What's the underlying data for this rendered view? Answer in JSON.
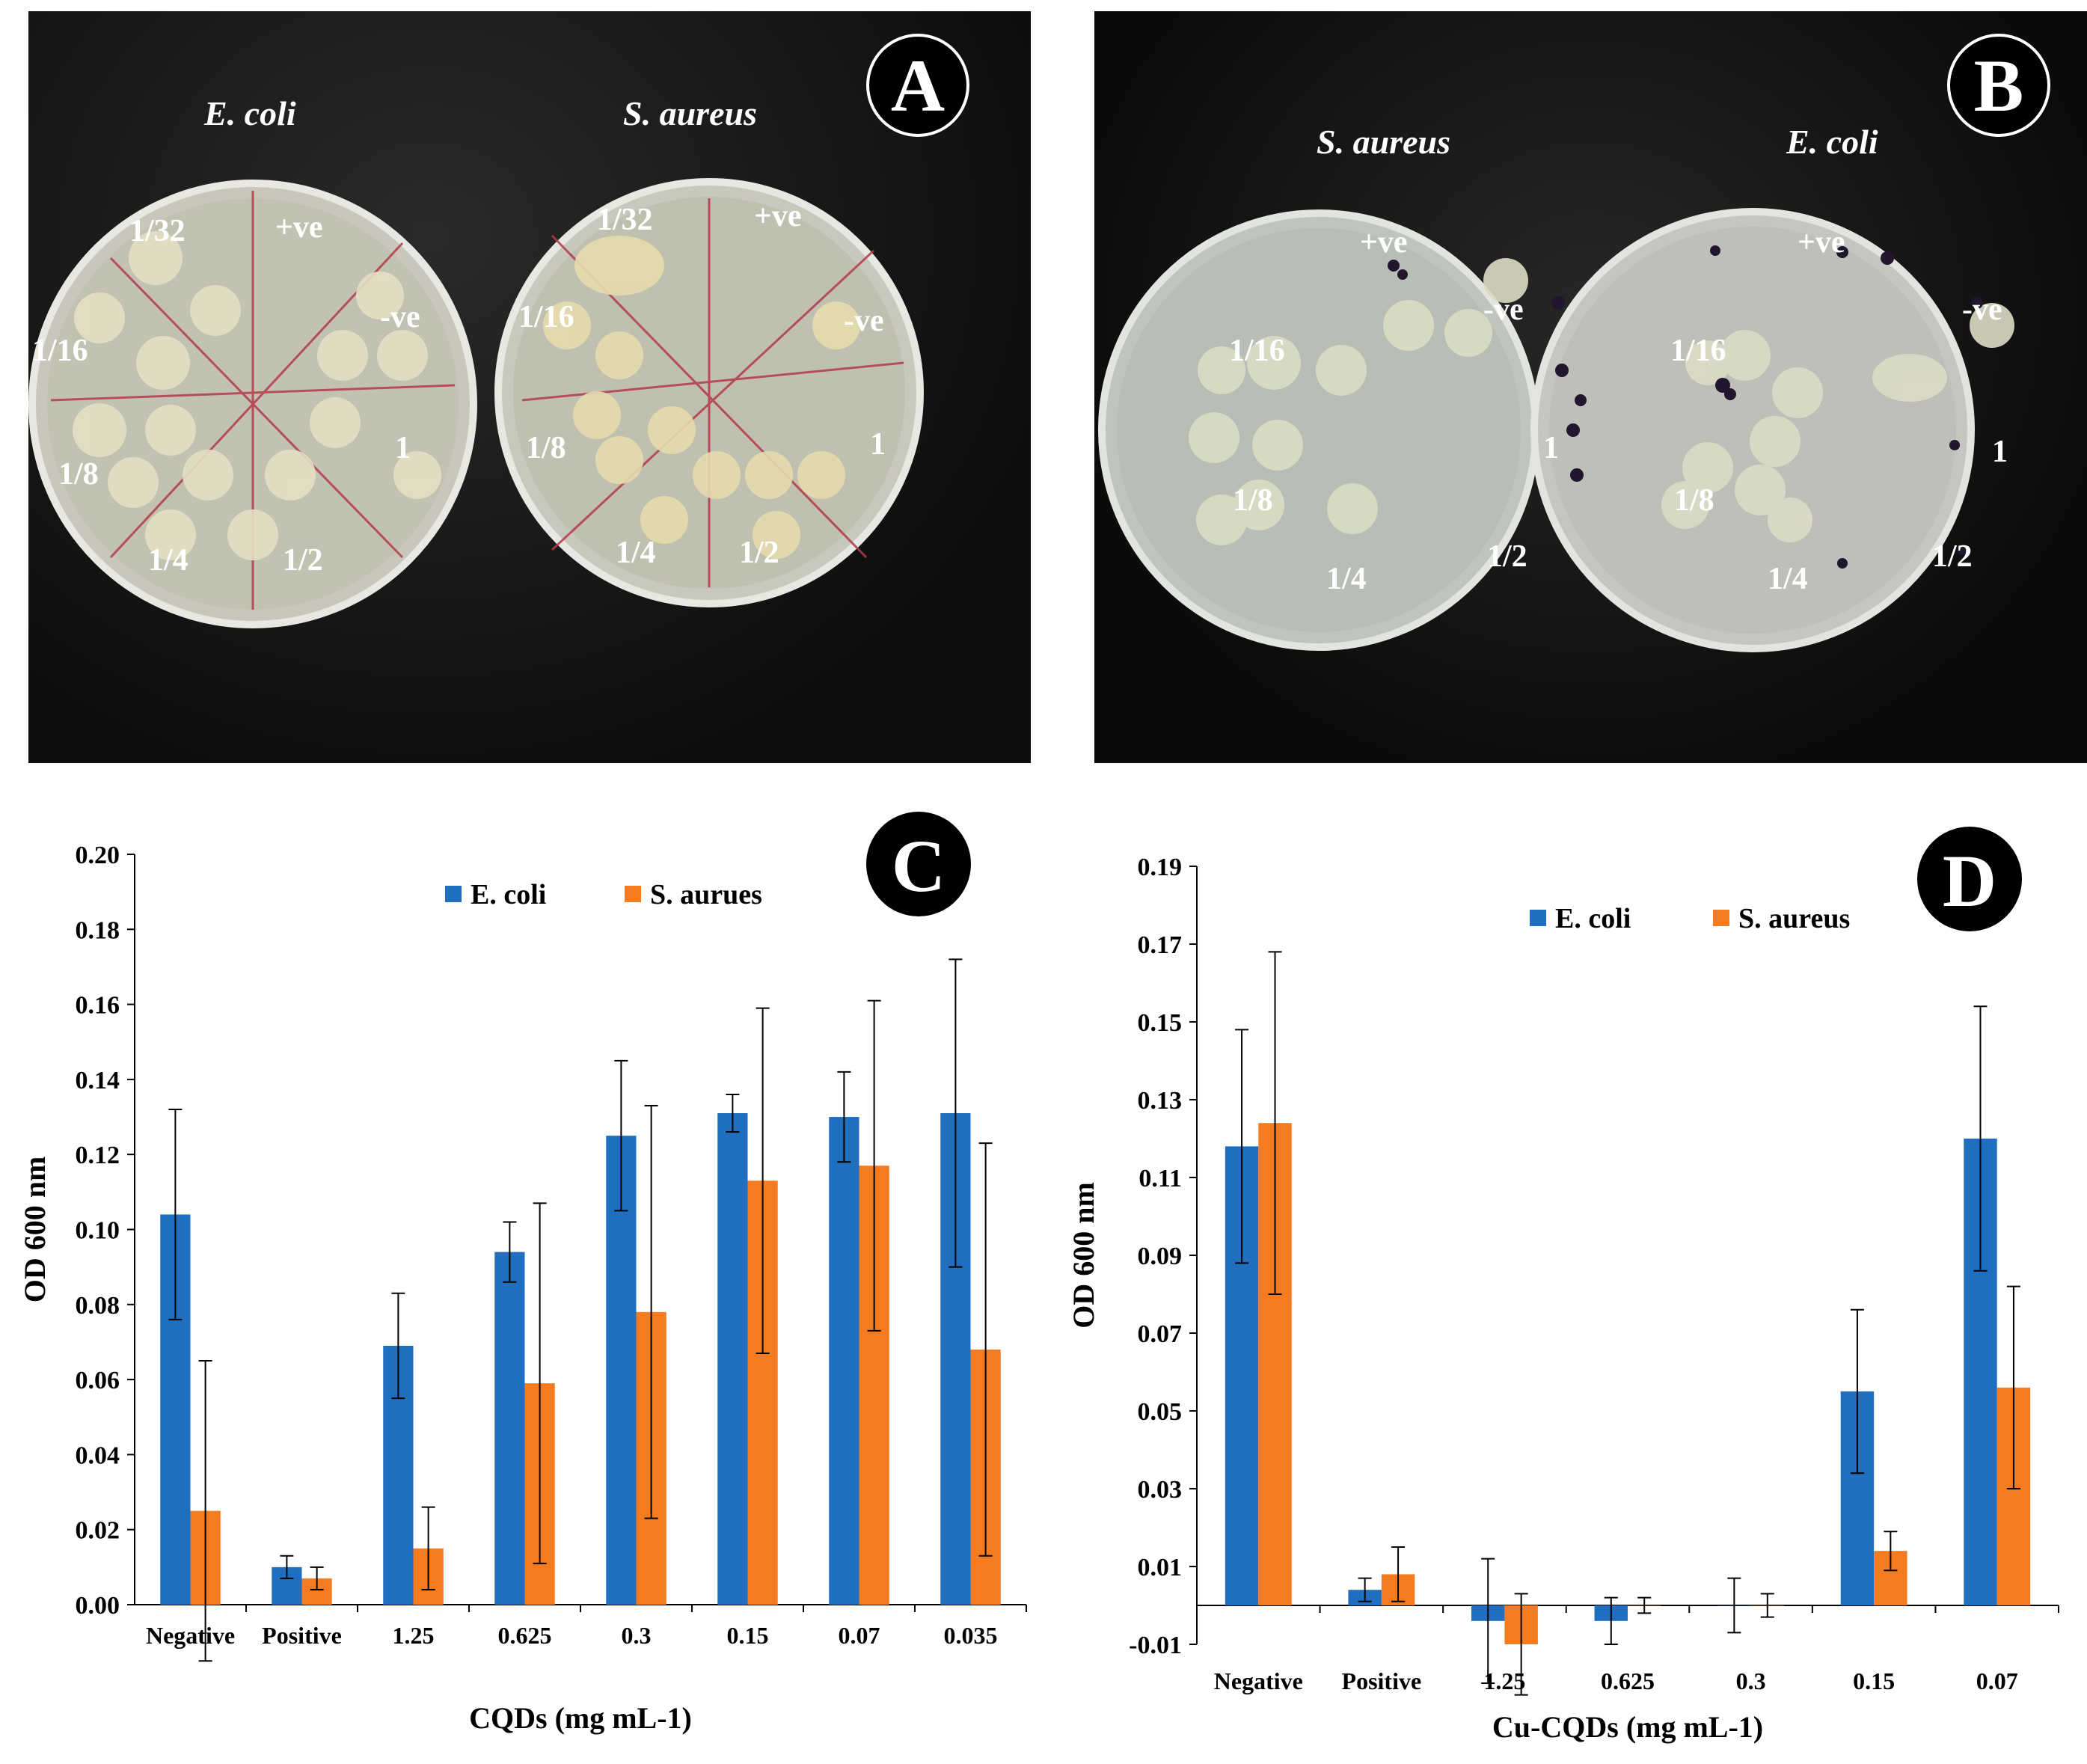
{
  "panels": {
    "A": {
      "badge": "A",
      "plates": [
        {
          "title": "E. coli",
          "labels": {
            "pos": "+ve",
            "neg": "-ve",
            "d1": "1",
            "d2": "1/2",
            "d4": "1/4",
            "d8": "1/8",
            "d16": "1/16",
            "d32": "1/32"
          }
        },
        {
          "title": "S. aureus",
          "labels": {
            "pos": "+ve",
            "neg": "-ve",
            "d1": "1",
            "d2": "1/2",
            "d4": "1/4",
            "d8": "1/8",
            "d16": "1/16",
            "d32": "1/32"
          }
        }
      ]
    },
    "B": {
      "badge": "B",
      "plates": [
        {
          "title": "S. aureus",
          "labels": {
            "pos": "+ve",
            "neg": "-ve",
            "d1": "1",
            "d2": "1/2",
            "d4": "1/4",
            "d8": "1/8",
            "d16": "1/16"
          }
        },
        {
          "title": "E. coli",
          "labels": {
            "pos": "+ve",
            "neg": "-ve",
            "d1": "1",
            "d2": "1/2",
            "d4": "1/4",
            "d8": "1/8",
            "d16": "1/16"
          }
        }
      ]
    }
  },
  "colors": {
    "ecoli": "#1f6ec0",
    "saureus": "#f47b20",
    "axis": "#000000"
  },
  "chart_data": [
    {
      "id": "C",
      "badge": "C",
      "type": "bar",
      "xlabel": "CQDs (mg mL-1)",
      "ylabel": "OD 600 nm",
      "ylim": [
        0,
        0.2
      ],
      "yticks": [
        0.0,
        0.02,
        0.04,
        0.06,
        0.08,
        0.1,
        0.12,
        0.14,
        0.16,
        0.18,
        0.2
      ],
      "categories": [
        "Negative",
        "Positive",
        "1.25",
        "0.625",
        "0.3",
        "0.15",
        "0.07",
        "0.035"
      ],
      "legend_position": "top-center",
      "series": [
        {
          "name": "E. coli",
          "values": [
            0.104,
            0.01,
            0.069,
            0.094,
            0.125,
            0.131,
            0.13,
            0.131
          ],
          "errors": [
            0.028,
            0.003,
            0.014,
            0.008,
            0.02,
            0.005,
            0.012,
            0.041
          ]
        },
        {
          "name": "S. aurues",
          "values": [
            0.025,
            0.007,
            0.015,
            0.059,
            0.078,
            0.113,
            0.117,
            0.068
          ],
          "errors": [
            0.04,
            0.003,
            0.011,
            0.048,
            0.055,
            0.046,
            0.044,
            0.055
          ]
        }
      ]
    },
    {
      "id": "D",
      "badge": "D",
      "type": "bar",
      "xlabel": "Cu-CQDs (mg mL-1)",
      "ylabel": "OD 600 nm",
      "ylim": [
        -0.01,
        0.19
      ],
      "yticks": [
        -0.01,
        0.01,
        0.03,
        0.05,
        0.07,
        0.09,
        0.11,
        0.13,
        0.15,
        0.17,
        0.19
      ],
      "categories": [
        "Negative",
        "Positive",
        "1.25",
        "0.625",
        "0.3",
        "0.15",
        "0.07"
      ],
      "legend_position": "top-center",
      "series": [
        {
          "name": "E. coli",
          "values": [
            0.118,
            0.004,
            -0.004,
            -0.004,
            0.0,
            0.055,
            0.12
          ],
          "errors": [
            0.03,
            0.003,
            0.016,
            0.006,
            0.007,
            0.021,
            0.034
          ]
        },
        {
          "name": "S. aureus",
          "values": [
            0.124,
            0.008,
            -0.01,
            0.0,
            0.0,
            0.014,
            0.056
          ],
          "errors": [
            0.044,
            0.007,
            0.013,
            0.002,
            0.003,
            0.005,
            0.026
          ]
        }
      ]
    }
  ]
}
